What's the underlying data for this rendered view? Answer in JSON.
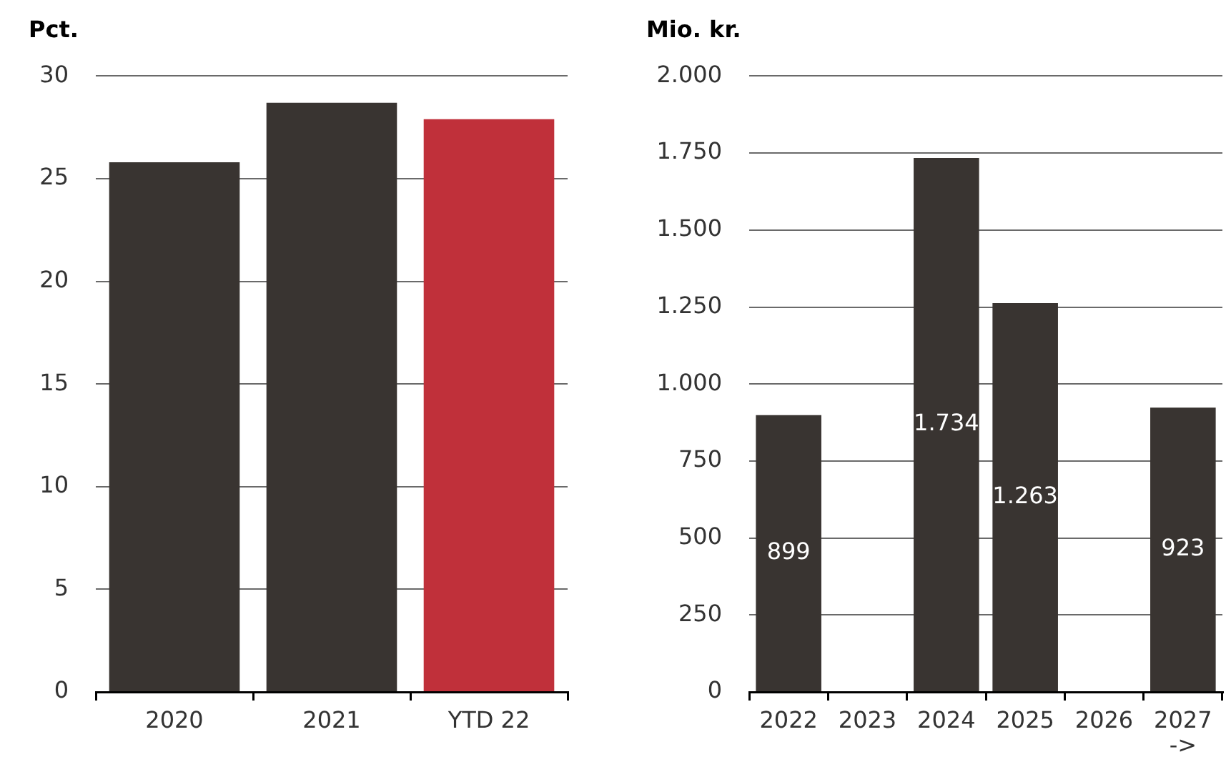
{
  "chart_data": [
    {
      "type": "bar",
      "ylabel": "Pct.",
      "categories": [
        "2020",
        "2021",
        "YTD 22"
      ],
      "values": [
        25.8,
        28.7,
        27.9
      ],
      "colors": [
        "#393431",
        "#393431",
        "#c0303a"
      ],
      "ylim": [
        0,
        30
      ],
      "yticks": [
        0,
        5,
        10,
        15,
        20,
        25,
        30
      ],
      "grid": "y"
    },
    {
      "type": "bar",
      "ylabel": "Mio. kr.",
      "categories": [
        "2022",
        "2023",
        "2024",
        "2025",
        "2026",
        "2027 ->"
      ],
      "values": [
        899,
        null,
        1734,
        1263,
        null,
        923
      ],
      "color": "#393431",
      "value_labels": [
        "899",
        null,
        "1.734",
        "1.263",
        null,
        "923"
      ],
      "ylim": [
        0,
        2000
      ],
      "yticks": [
        0,
        250,
        500,
        750,
        {
          "value": 1000,
          "label": "1.000"
        },
        {
          "value": 1250,
          "label": "1.250"
        },
        {
          "value": 1500,
          "label": "1.500"
        },
        {
          "value": 1750,
          "label": "1.750"
        },
        {
          "value": 2000,
          "label": "2.000"
        }
      ],
      "grid": "y"
    }
  ]
}
